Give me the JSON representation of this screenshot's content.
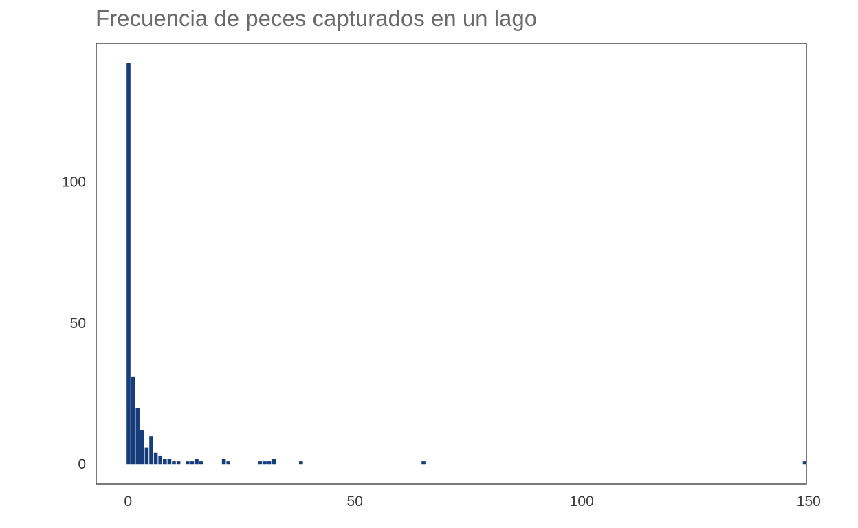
{
  "chart_data": {
    "type": "bar",
    "title": "Frecuencia de peces capturados en un lago",
    "xlabel": "",
    "ylabel": "",
    "x": [
      0,
      1,
      2,
      3,
      4,
      5,
      6,
      7,
      8,
      9,
      10,
      11,
      13,
      14,
      15,
      16,
      21,
      22,
      29,
      30,
      31,
      32,
      38,
      65,
      149
    ],
    "values": [
      142,
      31,
      20,
      12,
      6,
      10,
      4,
      3,
      2,
      2,
      1,
      1,
      1,
      1,
      2,
      1,
      2,
      1,
      1,
      1,
      1,
      2,
      1,
      1,
      1
    ],
    "xlim": [
      -7,
      149.5
    ],
    "ylim": [
      -7,
      149
    ],
    "xticks": [
      0,
      50,
      100,
      150
    ],
    "yticks": [
      0,
      50,
      100
    ],
    "grid": false,
    "colors": {
      "bar": "#163d7a",
      "frame": "#333333"
    }
  }
}
